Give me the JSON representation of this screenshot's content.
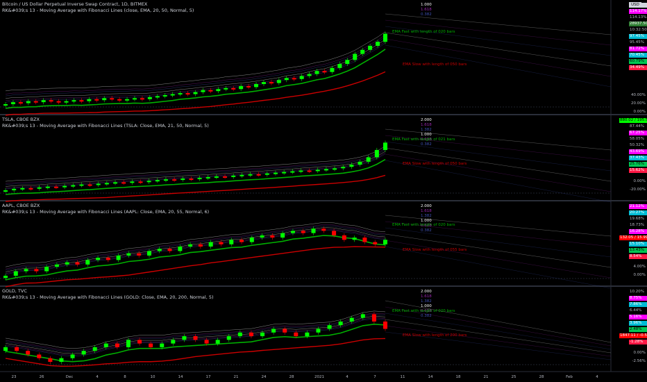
{
  "colors": {
    "up": "#00ff00",
    "down": "#ff0000",
    "fast": "#00b000",
    "slow": "#cc0000"
  },
  "currency_button": "USD",
  "x_labels": [
    "23",
    "26",
    "Dec",
    "4",
    "8",
    "10",
    "14",
    "17",
    "21",
    "24",
    "28",
    "2021",
    "4",
    "7",
    "11",
    "14",
    "18",
    "21",
    "25",
    "28",
    "Feb",
    "4"
  ],
  "panes": [
    {
      "title": "Bitcoin / US Dollar Perpetual Inverse Swap Contract, 1D, BITMEX",
      "indicator": "RK&#039;s 13 - Moving Average with Fibonacci Lines (close, EMA, 20, 50, Normal, 5)",
      "fib_labels": [
        "1.000",
        "1.618",
        "0.382"
      ],
      "fast_label": "EMA Fast with length of 020 bars",
      "slow_label": "EMA Slow with length of 050 bars",
      "price_tags": [
        {
          "text": "USD",
          "bg": "#d1d4dc",
          "fg": "#000"
        },
        {
          "text": "114.17%",
          "bg": "#ff00ff",
          "fg": "#fff"
        },
        {
          "text": "114.13%",
          "bg": "#000",
          "fg": "#b2b5be"
        },
        {
          "text": "28937.50",
          "bg": "#2e7d32",
          "fg": "#fff"
        },
        {
          "text": "10:32:50",
          "bg": "#000",
          "fg": "#b2b5be"
        },
        {
          "text": "97.45%",
          "bg": "#00bcd4",
          "fg": "#fff"
        },
        {
          "text": "95.45%",
          "bg": "#000",
          "fg": "#b2b5be"
        },
        {
          "text": "81.72%",
          "bg": "#ff00ff",
          "fg": "#fff"
        },
        {
          "text": "70.45%",
          "bg": "#00bcd4",
          "fg": "#fff"
        },
        {
          "text": "60.79%",
          "bg": "#00c853",
          "fg": "#000"
        },
        {
          "text": "34.49%",
          "bg": "#ff1744",
          "fg": "#fff"
        }
      ],
      "axis": [
        "40.00%",
        "20.00%",
        "0.00%"
      ]
    },
    {
      "title": "TSLA, CBOE BZX",
      "indicator": "RK&#039;s 13 - Moving Average with Fibonacci Lines (TSLA: Close, EMA, 21, 50, Normal, 5)",
      "fib_labels": [
        "2.000",
        "1.618",
        "1.382",
        "1.000",
        "0.618",
        "0.382"
      ],
      "fast_label": "EMA Fast with length of 021 bars",
      "slow_label": "EMA Slow with length of 050 bars",
      "price_tags": [
        {
          "text": "880.02 / 195.58%",
          "bg": "#00ff00",
          "fg": "#000"
        },
        {
          "text": "87.44%",
          "bg": "#000",
          "fg": "#b2b5be"
        },
        {
          "text": "67.25%",
          "bg": "#ff00ff",
          "fg": "#fff"
        },
        {
          "text": "58.05%",
          "bg": "#000",
          "fg": "#b2b5be"
        },
        {
          "text": "50.32%",
          "bg": "#000",
          "fg": "#b2b5be"
        },
        {
          "text": "43.69%",
          "bg": "#ff00ff",
          "fg": "#fff"
        },
        {
          "text": "37.43%",
          "bg": "#00bcd4",
          "fg": "#fff"
        },
        {
          "text": "25.76%",
          "bg": "#00c853",
          "fg": "#000"
        },
        {
          "text": "15.62%",
          "bg": "#ff1744",
          "fg": "#fff"
        }
      ],
      "axis": [
        "0.00%",
        "-20.00%"
      ]
    },
    {
      "title": "AAPL, CBOE BZX",
      "indicator": "RK&#039;s 13 - Moving Average with Fibonacci Lines (AAPL: Close, EMA, 20, 55, Normal, 6)",
      "fib_labels": [
        "2.000",
        "1.618",
        "1.382",
        "1.000",
        "0.618",
        "0.382"
      ],
      "fast_label": "EMA Fast with length of 020 bars",
      "slow_label": "EMA Slow with length of 055 bars",
      "price_tags": [
        {
          "text": "21.12%",
          "bg": "#ff00ff",
          "fg": "#fff"
        },
        {
          "text": "20.27%",
          "bg": "#00bcd4",
          "fg": "#fff"
        },
        {
          "text": "19.68%",
          "bg": "#000",
          "fg": "#b2b5be"
        },
        {
          "text": "18.73%",
          "bg": "#000",
          "fg": "#b2b5be"
        },
        {
          "text": "16.28%",
          "bg": "#ff00ff",
          "fg": "#fff"
        },
        {
          "text": "132.05 / 15.99%",
          "bg": "#ff0000",
          "fg": "#fff"
        },
        {
          "text": "15.10%",
          "bg": "#00bcd4",
          "fg": "#fff"
        },
        {
          "text": "13.43%",
          "bg": "#00c853",
          "fg": "#000"
        },
        {
          "text": "8.54%",
          "bg": "#ff1744",
          "fg": "#fff"
        }
      ],
      "axis": [
        "4.00%",
        "0.00%"
      ]
    },
    {
      "title": "GOLD, TVC",
      "indicator": "RK&#039;s 13 - Moving Average with Fibonacci Lines (GOLD: Close, EMA, 20, 200, Normal, 5)",
      "fib_labels": [
        "2.000",
        "1.618",
        "1.382",
        "1.000",
        "0.618",
        "0.382"
      ],
      "fast_label": "EMA Fast with length of 020 bars",
      "slow_label": "EMA Slow with length of 200 bars",
      "price_tags": [
        {
          "text": "10.20%",
          "bg": "#000",
          "fg": "#b2b5be"
        },
        {
          "text": "8.75%",
          "bg": "#ff00ff",
          "fg": "#fff"
        },
        {
          "text": "7.86%",
          "bg": "#00bcd4",
          "fg": "#fff"
        },
        {
          "text": "6.44%",
          "bg": "#000",
          "fg": "#b2b5be"
        },
        {
          "text": "5.16%",
          "bg": "#ff00ff",
          "fg": "#fff"
        },
        {
          "text": "3.96%",
          "bg": "#00bcd4",
          "fg": "#fff"
        },
        {
          "text": "2.48%",
          "bg": "#00c853",
          "fg": "#000"
        },
        {
          "text": "1847.11 / -0.56%",
          "bg": "#ff0000",
          "fg": "#fff"
        },
        {
          "text": "-1.28%",
          "bg": "#ff1744",
          "fg": "#fff"
        }
      ],
      "axis": [
        "0.00%",
        "-2.56%"
      ]
    }
  ],
  "chart_data": [
    {
      "type": "candlestick",
      "name": "BTC",
      "closes": [
        0,
        2,
        1,
        3,
        2,
        4,
        3,
        2,
        3,
        4,
        3,
        5,
        4,
        6,
        5,
        4,
        5,
        6,
        5,
        7,
        8,
        9,
        10,
        11,
        10,
        12,
        14,
        13,
        15,
        16,
        15,
        18,
        17,
        20,
        22,
        21,
        24,
        26,
        25,
        28,
        30,
        33,
        32,
        36,
        40,
        44,
        50,
        54,
        58,
        62,
        70
      ]
    },
    {
      "type": "candlestick",
      "name": "TSLA",
      "closes": [
        0,
        4,
        6,
        5,
        8,
        10,
        9,
        12,
        14,
        16,
        15,
        18,
        20,
        22,
        21,
        24,
        23,
        26,
        28,
        30,
        29,
        32,
        31,
        34,
        36,
        38,
        37,
        40,
        42,
        44,
        43,
        46,
        48,
        50,
        52,
        54,
        53,
        56,
        58,
        60,
        64,
        70,
        78,
        90,
        110,
        130
      ]
    },
    {
      "type": "candlestick",
      "name": "AAPL",
      "closes": [
        0,
        2,
        3,
        2,
        4,
        5,
        6,
        5,
        7,
        8,
        7,
        9,
        10,
        9,
        11,
        12,
        11,
        13,
        14,
        13,
        15,
        14,
        16,
        15,
        17,
        18,
        17,
        19,
        20,
        19,
        21,
        20,
        18,
        16,
        17,
        15,
        14,
        16
      ]
    },
    {
      "type": "candlestick",
      "name": "GOLD",
      "closes": [
        5,
        4,
        3,
        2,
        1,
        2,
        3,
        4,
        5,
        6,
        5,
        7,
        6,
        5,
        6,
        7,
        8,
        7,
        6,
        7,
        8,
        9,
        8,
        9,
        10,
        9,
        8,
        9,
        10,
        11,
        12,
        13,
        14,
        12,
        10
      ]
    }
  ]
}
